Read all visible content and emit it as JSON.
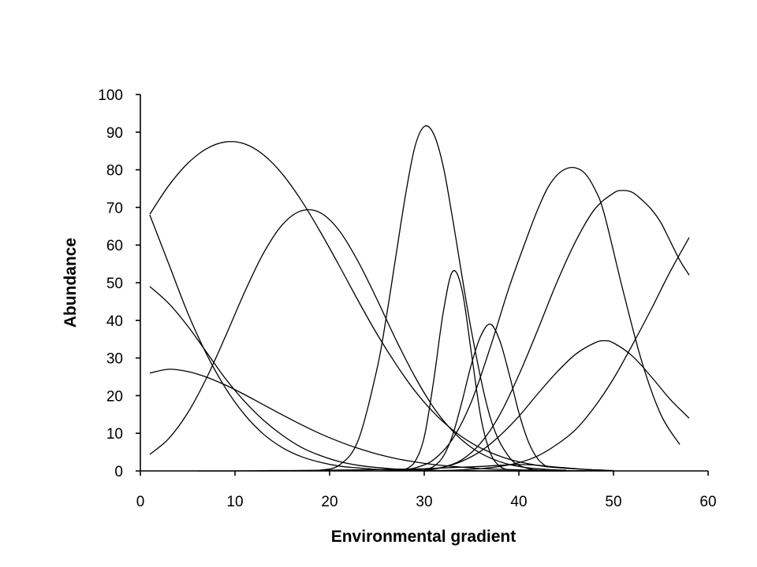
{
  "chart_data": {
    "type": "line",
    "title": "",
    "xlabel": "Environmental gradient",
    "ylabel": "Abundance",
    "xlim": [
      0,
      60
    ],
    "ylim": [
      0,
      100
    ],
    "xticks": [
      0,
      10,
      20,
      30,
      40,
      50,
      60
    ],
    "yticks": [
      0,
      10,
      20,
      30,
      40,
      50,
      60,
      70,
      80,
      90,
      100
    ],
    "grid": false,
    "legend": "none",
    "line_color": "#000000",
    "series": [
      {
        "x": [
          1,
          3,
          5,
          7,
          9,
          11,
          13,
          15,
          17,
          19,
          21,
          23,
          25,
          27,
          29,
          31,
          33,
          35,
          37,
          39,
          41,
          43,
          45,
          47,
          49
        ],
        "y": [
          68.2,
          75.8,
          81.7,
          85.6,
          87.4,
          86.9,
          84.0,
          78.9,
          71.9,
          63.6,
          54.6,
          45.3,
          36.4,
          28.4,
          21.3,
          15.5,
          10.9,
          7.4,
          4.9,
          3.1,
          1.9,
          1.1,
          0.7,
          0.4,
          0.2
        ]
      },
      {
        "x": [
          1,
          3,
          5,
          7,
          9,
          11,
          13,
          15,
          17,
          19,
          21,
          23,
          25,
          27,
          29,
          31,
          33,
          35,
          37,
          39,
          41,
          43,
          45
        ],
        "y": [
          4.4,
          8.6,
          15.4,
          24.7,
          35.8,
          47.4,
          57.8,
          65.4,
          69.1,
          68.6,
          63.9,
          55.7,
          45.6,
          34.9,
          25.1,
          16.8,
          10.6,
          6.2,
          3.4,
          1.7,
          0.8,
          0.4,
          0.2
        ]
      },
      {
        "x": [
          19,
          21,
          23,
          25,
          26,
          27,
          28,
          29,
          30,
          31,
          32,
          33,
          35,
          37,
          39,
          41,
          43
        ],
        "y": [
          0.2,
          1.5,
          8.0,
          27.0,
          41.0,
          57.0,
          73.0,
          86.0,
          91.5,
          89.5,
          81.0,
          67.0,
          37.0,
          14.0,
          3.6,
          0.6,
          0.1
        ]
      },
      {
        "x": [
          28,
          29,
          30,
          31,
          32,
          33,
          34,
          35,
          36,
          37,
          38,
          39
        ],
        "y": [
          0.4,
          2.4,
          9.0,
          24.0,
          42.0,
          53.0,
          48.0,
          31.0,
          14.0,
          4.7,
          1.2,
          0.2
        ]
      },
      {
        "x": [
          30,
          31,
          32,
          33,
          34,
          35,
          36,
          37,
          38,
          39,
          40,
          41,
          42,
          43
        ],
        "y": [
          0.3,
          1.2,
          3.8,
          9.5,
          18.5,
          28.5,
          36.0,
          39.0,
          34.5,
          25.5,
          15.5,
          7.8,
          3.2,
          1.0
        ]
      },
      {
        "x": [
          27,
          29,
          31,
          33,
          35,
          37,
          39,
          41,
          42,
          43,
          44,
          45,
          46,
          47,
          48,
          49,
          51,
          53,
          55,
          57
        ],
        "y": [
          0.1,
          0.8,
          3.0,
          8.5,
          18.5,
          33.0,
          49.0,
          63.0,
          69.5,
          75.0,
          78.5,
          80.3,
          80.5,
          79.0,
          75.0,
          68.5,
          48.0,
          29.0,
          15.0,
          7.0
        ]
      },
      {
        "x": [
          30,
          32,
          34,
          36,
          38,
          40,
          42,
          44,
          46,
          48,
          50,
          51,
          52,
          53,
          54,
          55,
          56,
          57,
          58
        ],
        "y": [
          0.2,
          1.0,
          3.0,
          7.5,
          15.0,
          25.5,
          37.5,
          50.0,
          61.0,
          69.5,
          73.8,
          74.5,
          74.0,
          72.0,
          69.5,
          66.0,
          61.0,
          56.0,
          52.0
        ]
      },
      {
        "x": [
          30,
          32,
          34,
          36,
          38,
          40,
          42,
          44,
          46,
          48,
          49,
          50,
          52,
          54,
          56,
          58
        ],
        "y": [
          0.3,
          1.0,
          2.6,
          5.3,
          9.4,
          14.5,
          20.5,
          26.2,
          31.0,
          34.0,
          34.6,
          34.0,
          30.5,
          25.0,
          19.0,
          14.0
        ]
      },
      {
        "x": [
          30,
          32,
          34,
          36,
          38,
          40,
          42,
          44,
          46,
          48,
          50,
          52,
          54,
          56,
          58
        ],
        "y": [
          0.0,
          0.1,
          0.3,
          0.6,
          1.2,
          2.2,
          4.0,
          7.0,
          11.0,
          17.0,
          24.5,
          33.5,
          43.0,
          53.0,
          62.0
        ]
      },
      {
        "x": [
          1,
          3,
          5,
          7,
          9,
          11,
          13,
          15,
          17,
          19,
          21,
          23,
          25,
          27,
          29,
          31,
          33,
          35,
          37,
          39,
          41,
          43,
          45
        ],
        "y": [
          49.0,
          44.5,
          38.5,
          31.5,
          24.5,
          18.5,
          13.5,
          9.5,
          6.3,
          4.1,
          2.5,
          1.5,
          0.9,
          0.5,
          0.3,
          0.15,
          0.08,
          0.04,
          0.02,
          0.01,
          0.0,
          0.0,
          0.0
        ]
      },
      {
        "x": [
          1,
          3,
          5,
          7,
          9,
          11,
          13,
          15,
          17,
          19,
          21,
          23,
          25,
          27,
          29,
          31,
          33,
          35,
          37,
          39,
          41,
          43,
          45,
          47
        ],
        "y": [
          68.0,
          55.0,
          42.0,
          31.0,
          22.0,
          15.0,
          9.8,
          6.2,
          3.8,
          2.3,
          1.3,
          0.8,
          0.4,
          0.2,
          0.12,
          0.06,
          0.03,
          0.01,
          0.0,
          0.0,
          0.0,
          0.0,
          0.0,
          0.0
        ]
      },
      {
        "x": [
          1,
          3,
          5,
          7,
          9,
          11,
          13,
          15,
          17,
          19,
          21,
          23,
          25,
          27,
          29,
          31,
          33,
          35,
          37,
          39,
          41,
          43,
          45,
          47,
          49
        ],
        "y": [
          26.0,
          27.0,
          26.4,
          24.9,
          22.8,
          20.3,
          17.6,
          14.9,
          12.3,
          9.9,
          7.8,
          6.0,
          4.5,
          3.3,
          2.4,
          1.7,
          1.2,
          0.8,
          0.5,
          0.35,
          0.22,
          0.14,
          0.09,
          0.05,
          0.03
        ]
      },
      {
        "x": [
          6,
          8,
          10,
          12,
          14,
          16,
          18,
          20,
          22,
          24,
          26,
          28,
          30,
          32,
          34,
          36,
          38,
          40,
          42,
          44,
          46,
          48,
          50
        ],
        "y": [
          0.0,
          0.0,
          0.0,
          0.05,
          0.1,
          0.1,
          0.15,
          0.2,
          0.25,
          0.3,
          0.4,
          0.5,
          0.6,
          0.8,
          1.0,
          1.2,
          1.5,
          1.7,
          1.5,
          1.0,
          0.6,
          0.3,
          0.1
        ]
      }
    ]
  }
}
